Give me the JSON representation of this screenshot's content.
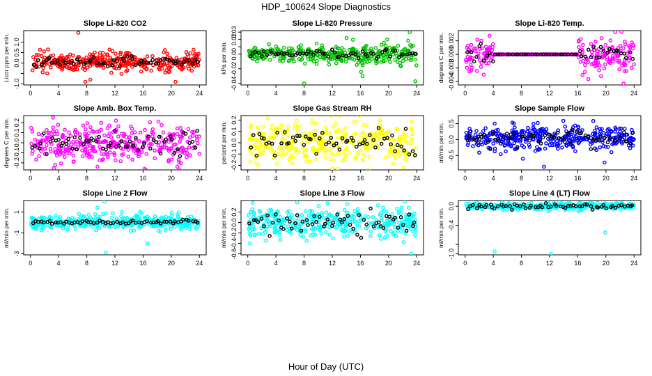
{
  "figure": {
    "title": "HDP_100624  Slope Diagnostics",
    "xlabel": "Hour of Day (UTC)"
  },
  "chart_data": [
    {
      "type": "scatter",
      "title": "Slope Li-820 CO2",
      "ylabel": "Licor ppm per min.",
      "color": "#ff0000",
      "xlim": [
        -0.96,
        24.96
      ],
      "xticks": [
        0,
        4,
        8,
        12,
        16,
        20,
        24
      ],
      "ylim": [
        -1.05,
        1.55
      ],
      "yticks": [
        -1.0,
        -0.5,
        0.0,
        0.5,
        1.0
      ],
      "ytick_labels": [
        "-1.0",
        "",
        "0.0",
        "0.5",
        "1.0"
      ],
      "cloud_center": 0.05,
      "cloud_spread": 0.22,
      "black_spread": 0.12,
      "outliers": [
        {
          "x": 6.8,
          "y": 1.45
        },
        {
          "x": 7.8,
          "y": -0.9
        },
        {
          "x": 8.5,
          "y": -0.8
        },
        {
          "x": 20.6,
          "y": -0.9
        }
      ]
    },
    {
      "type": "scatter",
      "title": "Slope Li-820 Pressure",
      "ylabel": "kPa per min.",
      "color": "#00c000",
      "xlim": [
        -0.96,
        24.96
      ],
      "xticks": [
        0,
        4,
        8,
        12,
        16,
        20,
        24
      ],
      "ylim": [
        -0.042,
        0.032
      ],
      "yticks": [
        -0.04,
        -0.02,
        0.0,
        0.01,
        0.02,
        0.03
      ],
      "ytick_labels": [
        "-0.04",
        "-0.02",
        "0.00",
        "",
        "0.02",
        "0.03"
      ],
      "cloud_center": 0.0,
      "cloud_spread": 0.004,
      "black_spread": 0.003,
      "spread_growth": 2.2,
      "outliers": [
        {
          "x": 8.0,
          "y": -0.04
        },
        {
          "x": 16.3,
          "y": -0.03
        },
        {
          "x": 23.8,
          "y": -0.037
        },
        {
          "x": 23.0,
          "y": 0.03
        },
        {
          "x": 19.8,
          "y": 0.02
        }
      ]
    },
    {
      "type": "scatter",
      "title": "Slope Li-820 Temp.",
      "ylabel": "degrees C per min.",
      "color": "#ff00ff",
      "xlim": [
        -0.96,
        24.96
      ],
      "xticks": [
        0,
        4,
        8,
        12,
        16,
        20,
        24
      ],
      "ylim": [
        -0.0045,
        0.0035
      ],
      "yticks": [
        -0.004,
        -0.002,
        0.0,
        0.002
      ],
      "ytick_labels": [
        "-0.004",
        "-0.002",
        "0.000",
        "0.002"
      ],
      "flat_mid": [
        4,
        16
      ],
      "flat_value": 0.0,
      "cloud_center": 0.0,
      "cloud_spread": 0.0012,
      "black_spread": 0.0008,
      "outliers": [
        {
          "x": 21.3,
          "y": 0.0033
        },
        {
          "x": 22.2,
          "y": 0.0033
        },
        {
          "x": 22.5,
          "y": -0.0043
        },
        {
          "x": 0.6,
          "y": -0.0025
        }
      ]
    },
    {
      "type": "scatter",
      "title": "Slope Amb. Box Temp.",
      "ylabel": "degrees C per min.",
      "color": "#ff00ff",
      "xlim": [
        -0.96,
        24.96
      ],
      "xticks": [
        0,
        4,
        8,
        12,
        16,
        20,
        24
      ],
      "ylim": [
        -0.27,
        0.27
      ],
      "yticks": [
        -0.2,
        -0.1,
        0.0,
        0.1,
        0.2
      ],
      "ytick_labels": [
        "-0.2",
        "-0.1",
        "0.0",
        "0.1",
        "0.2"
      ],
      "cloud_center": 0.0,
      "cloud_spread": 0.09,
      "black_spread": 0.06,
      "outliers": [
        {
          "x": 16.2,
          "y": -0.26
        },
        {
          "x": 3.2,
          "y": 0.25
        }
      ]
    },
    {
      "type": "scatter",
      "title": "Slope Gas Stream RH",
      "ylabel": "percent per min.",
      "color": "#ffff00",
      "xlim": [
        -0.96,
        24.96
      ],
      "xticks": [
        0,
        4,
        8,
        12,
        16,
        20,
        24
      ],
      "ylim": [
        -0.24,
        0.24
      ],
      "yticks": [
        -0.2,
        -0.1,
        0.0,
        0.1,
        0.2
      ],
      "ytick_labels": [
        "-0.2",
        "-0.1",
        "0.0",
        "0.1",
        "0.2"
      ],
      "cloud_center": 0.0,
      "cloud_spread": 0.1,
      "black_spread": 0.06,
      "outliers": [
        {
          "x": 9.2,
          "y": 0.2
        },
        {
          "x": 12.8,
          "y": -0.23
        }
      ]
    },
    {
      "type": "scatter",
      "title": "Slope Sample Flow",
      "ylabel": "ml/min per min.",
      "color": "#0000ff",
      "xlim": [
        -0.96,
        24.96
      ],
      "xticks": [
        0,
        4,
        8,
        12,
        16,
        20,
        24
      ],
      "ylim": [
        -0.95,
        0.75
      ],
      "yticks": [
        -0.5,
        0.0,
        0.5
      ],
      "ytick_labels": [
        "-0.5",
        "0.0",
        "0.5"
      ],
      "cloud_center": 0.05,
      "cloud_spread": 0.18,
      "black_spread": 0.12,
      "outliers": [
        {
          "x": 11.2,
          "y": -0.85
        },
        {
          "x": 8.2,
          "y": -0.6
        },
        {
          "x": 19.8,
          "y": -0.72
        },
        {
          "x": 4.2,
          "y": 0.5
        }
      ]
    },
    {
      "type": "scatter",
      "title": "Slope Line 2 Flow",
      "ylabel": "ml/min per min.",
      "color": "#00ffff",
      "xlim": [
        -0.96,
        24.96
      ],
      "xticks": [
        0,
        4,
        8,
        12,
        16,
        20,
        24
      ],
      "ylim": [
        -3.1,
        2.1
      ],
      "yticks": [
        -3,
        -1,
        1
      ],
      "ytick_labels": [
        "-3",
        "-1",
        "1"
      ],
      "cloud_center": 0.0,
      "cloud_spread": 0.32,
      "black_spread": 0.1,
      "bursts": [
        [
          10.8,
          1.6
        ],
        [
          16.1,
          1.4
        ]
      ],
      "outliers": [
        {
          "x": 10.5,
          "y": 2.0
        },
        {
          "x": 10.7,
          "y": -2.9
        },
        {
          "x": 16.6,
          "y": -2.0
        },
        {
          "x": 13.0,
          "y": 1.0
        },
        {
          "x": 9.5,
          "y": 1.4
        }
      ]
    },
    {
      "type": "scatter",
      "title": "Slope Line 3 Flow",
      "ylabel": "ml/min per min.",
      "color": "#00ffff",
      "xlim": [
        -0.96,
        24.96
      ],
      "xticks": [
        0,
        4,
        8,
        12,
        16,
        20,
        24
      ],
      "ylim": [
        -0.62,
        0.42
      ],
      "yticks": [
        -0.6,
        -0.4,
        -0.2,
        0.0,
        0.2
      ],
      "ytick_labels": [
        "-0.6",
        "-0.4",
        "-0.2",
        "0.0",
        "0.2"
      ],
      "cloud_center": 0.0,
      "cloud_spread": 0.14,
      "black_spread": 0.1,
      "outliers": [
        {
          "x": 23.2,
          "y": -0.6
        },
        {
          "x": 22.3,
          "y": 0.4
        },
        {
          "x": 0.3,
          "y": -0.4
        }
      ]
    },
    {
      "type": "scatter",
      "title": "Slope Line 4 (LT) Flow",
      "ylabel": "ml/min per min.",
      "color": "#00ffff",
      "xlim": [
        -0.96,
        24.96
      ],
      "xticks": [
        0,
        4,
        8,
        12,
        16,
        20,
        24
      ],
      "ylim": [
        -1.02,
        0.12
      ],
      "yticks": [
        -1.0,
        -0.8,
        -0.4,
        0.0
      ],
      "ytick_labels": [
        "-1.0",
        "",
        "-0.4",
        "0.0"
      ],
      "cloud_center": 0.0,
      "cloud_spread": 0.035,
      "black_spread": 0.03,
      "outliers": [
        {
          "x": 4.2,
          "y": -0.95
        },
        {
          "x": 12.2,
          "y": -1.0
        },
        {
          "x": 19.9,
          "y": -0.55
        }
      ]
    }
  ]
}
